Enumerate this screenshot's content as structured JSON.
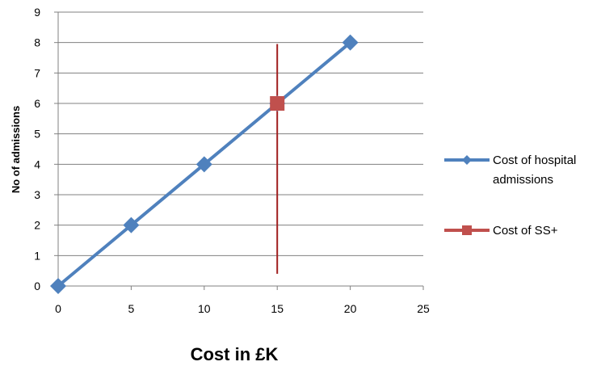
{
  "chart_data": {
    "type": "line",
    "title": "",
    "xlabel": "Cost in £K",
    "ylabel": "No of admissions",
    "xlim": [
      0,
      25
    ],
    "ylim": [
      0,
      9
    ],
    "xticks": [
      "0",
      "5",
      "10",
      "15",
      "20",
      "25"
    ],
    "yticks": [
      "0",
      "1",
      "2",
      "3",
      "4",
      "5",
      "6",
      "7",
      "8",
      "9"
    ],
    "grid": "horizontal",
    "legend_position": "right",
    "series": [
      {
        "name": "Cost of hospital admissions",
        "color": "#4F81BD",
        "marker": "diamond",
        "x": [
          0,
          5,
          10,
          15,
          20
        ],
        "y": [
          0,
          2,
          4,
          6,
          8
        ]
      },
      {
        "name": "Cost of SS+",
        "color": "#C0504D",
        "marker": "square",
        "x": [
          15
        ],
        "y": [
          6
        ]
      }
    ],
    "reference_line": {
      "color": "#A01E1E",
      "x_top": 15.0,
      "y_top": 7.95,
      "x_bottom": 15.0,
      "y_bottom": 0.4
    }
  }
}
